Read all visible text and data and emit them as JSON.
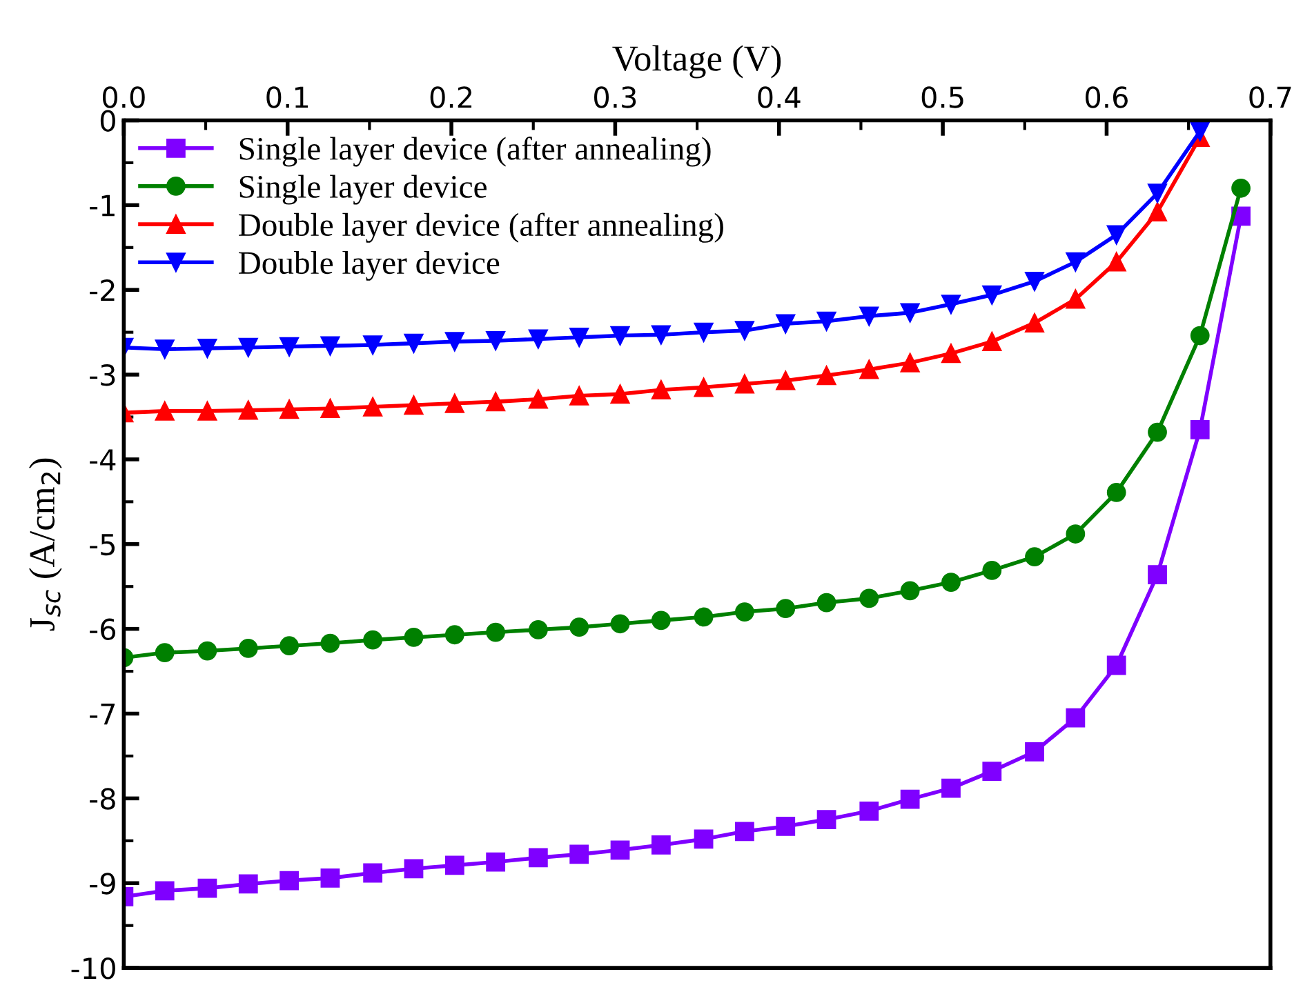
{
  "chart_data": {
    "type": "line",
    "xlabel": "Voltage (V)",
    "ylabel": "J$_{sc}$ (A/cm$_{2}$)",
    "x": [
      0,
      0.025,
      0.051,
      0.076,
      0.101,
      0.126,
      0.152,
      0.177,
      0.202,
      0.227,
      0.253,
      0.278,
      0.303,
      0.328,
      0.354,
      0.379,
      0.404,
      0.429,
      0.455,
      0.48,
      0.505,
      0.53,
      0.556,
      0.581,
      0.606,
      0.631,
      0.657,
      0.682
    ],
    "series": [
      {
        "name": "Single layer device (after annealing)",
        "color": "#7f00ff",
        "marker": "square",
        "values": [
          -9.16,
          -9.09,
          -9.06,
          -9.01,
          -8.97,
          -8.94,
          -8.88,
          -8.83,
          -8.79,
          -8.75,
          -8.7,
          -8.66,
          -8.61,
          -8.55,
          -8.48,
          -8.39,
          -8.33,
          -8.25,
          -8.15,
          -8.01,
          -7.88,
          -7.68,
          -7.45,
          -7.05,
          -6.43,
          -5.36,
          -3.65,
          -1.13
        ]
      },
      {
        "name": "Single layer device",
        "color": "#008000",
        "marker": "circle",
        "values": [
          -6.34,
          -6.28,
          -6.26,
          -6.23,
          -6.2,
          -6.17,
          -6.13,
          -6.1,
          -6.07,
          -6.04,
          -6.01,
          -5.98,
          -5.94,
          -5.9,
          -5.86,
          -5.8,
          -5.76,
          -5.69,
          -5.64,
          -5.55,
          -5.45,
          -5.31,
          -5.15,
          -4.88,
          -4.39,
          -3.68,
          -2.54,
          -0.8
        ]
      },
      {
        "name": "Double layer device (after annealing)",
        "color": "#ff0000",
        "marker": "triangle",
        "values": [
          -3.45,
          -3.43,
          -3.43,
          -3.42,
          -3.41,
          -3.4,
          -3.38,
          -3.36,
          -3.34,
          -3.32,
          -3.29,
          -3.25,
          -3.23,
          -3.18,
          -3.15,
          -3.11,
          -3.07,
          -3.01,
          -2.94,
          -2.86,
          -2.75,
          -2.61,
          -2.39,
          -2.11,
          -1.67,
          -1.08,
          -0.2,
          null
        ]
      },
      {
        "name": "Double layer device",
        "color": "#0000ff",
        "marker": "triangle_down",
        "values": [
          -2.68,
          -2.7,
          -2.69,
          -2.68,
          -2.67,
          -2.66,
          -2.65,
          -2.63,
          -2.61,
          -2.6,
          -2.58,
          -2.56,
          -2.54,
          -2.53,
          -2.5,
          -2.48,
          -2.4,
          -2.37,
          -2.31,
          -2.27,
          -2.17,
          -2.06,
          -1.9,
          -1.67,
          -1.35,
          -0.86,
          -0.13,
          null
        ]
      }
    ],
    "xlim": [
      0,
      0.7
    ],
    "xticks": [
      {
        "value": 0,
        "label": "0.0"
      },
      0.1,
      0.2,
      0.3,
      0.4,
      0.5,
      0.6,
      0.7
    ],
    "ylim": [
      -10,
      0
    ],
    "yticks": [
      0,
      -1,
      -2,
      -3,
      -4,
      -5,
      -6,
      -7,
      -8,
      -9,
      -10
    ],
    "legend": "top left",
    "grid": false,
    "line_style": "solid"
  }
}
